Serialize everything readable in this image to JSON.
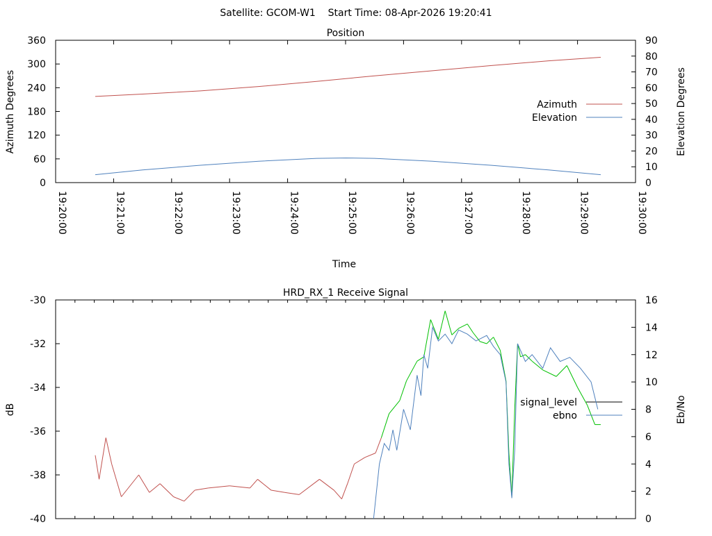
{
  "chart_data": [
    {
      "type": "line",
      "suptitle": "Satellite: GCOM-W1    Start Time: 08-Apr-2026 19:20:41",
      "title": "Position",
      "xlabel": "Time",
      "ylabel": "Azimuth Degrees",
      "y2label": "Elevation Degrees",
      "xlim_s": [
        0,
        600
      ],
      "ylim": [
        0,
        360
      ],
      "y2lim": [
        0,
        90
      ],
      "xticks": [
        "19:20:00",
        "19:21:00",
        "19:22:00",
        "19:23:00",
        "19:24:00",
        "19:25:00",
        "19:26:00",
        "19:27:00",
        "19:28:00",
        "19:29:00",
        "19:30:00"
      ],
      "yticks": [
        "0",
        "60",
        "120",
        "180",
        "240",
        "300",
        "360"
      ],
      "y2ticks": [
        "0",
        "10",
        "20",
        "30",
        "40",
        "50",
        "60",
        "70",
        "80",
        "90"
      ],
      "legend": "right",
      "series": [
        {
          "name": "Azimuth",
          "color": "#c0504d",
          "axis": "y",
          "x_s": [
            41,
            90,
            150,
            210,
            270,
            330,
            390,
            450,
            510,
            564
          ],
          "values": [
            218,
            224,
            232,
            243,
            256,
            270,
            283,
            296,
            308,
            317
          ]
        },
        {
          "name": "Elevation",
          "color": "#4f81bd",
          "axis": "y2",
          "x_s": [
            41,
            90,
            150,
            210,
            270,
            300,
            330,
            390,
            450,
            510,
            564
          ],
          "values": [
            5,
            8,
            11,
            13.5,
            15.3,
            15.6,
            15.3,
            13.5,
            11,
            8,
            5
          ]
        }
      ]
    },
    {
      "type": "line",
      "title": "HRD_RX_1 Receive Signal",
      "ylabel": "dB",
      "y2label": "Eb/No",
      "xlim_s": [
        0,
        600
      ],
      "ylim": [
        -40,
        -30
      ],
      "y2lim": [
        0,
        16
      ],
      "yticks": [
        "-40",
        "-38",
        "-36",
        "-34",
        "-32",
        "-30"
      ],
      "y2ticks": [
        "0",
        "2",
        "4",
        "6",
        "8",
        "10",
        "12",
        "14",
        "16"
      ],
      "legend": "right",
      "series": [
        {
          "name": "signal_level",
          "legend_color": "#000000",
          "low_color": "#c0504d",
          "high_color": "#00c000",
          "high_from_s": 335,
          "axis": "y",
          "x_s": [
            41,
            45,
            52,
            58,
            68,
            86,
            97,
            108,
            122,
            133,
            144,
            158,
            180,
            201,
            209,
            223,
            237,
            252,
            273,
            288,
            296,
            302,
            309,
            320,
            331,
            337,
            345,
            356,
            363,
            374,
            381,
            388,
            396,
            403,
            410,
            417,
            426,
            432,
            439,
            446,
            453,
            460,
            466,
            469,
            472,
            475,
            478,
            481,
            486,
            493,
            504,
            518,
            529,
            540,
            550,
            558,
            564
          ],
          "values": [
            -37.1,
            -38.2,
            -36.3,
            -37.5,
            -39.0,
            -38.0,
            -38.8,
            -38.4,
            -39.0,
            -39.2,
            -38.7,
            -38.6,
            -38.5,
            -38.6,
            -38.2,
            -38.7,
            -38.8,
            -38.9,
            -38.2,
            -38.7,
            -39.1,
            -38.4,
            -37.5,
            -37.2,
            -37.0,
            -36.3,
            -35.2,
            -34.6,
            -33.7,
            -32.8,
            -32.6,
            -30.9,
            -31.8,
            -30.5,
            -31.6,
            -31.3,
            -31.1,
            -31.5,
            -31.9,
            -32.0,
            -31.7,
            -32.3,
            -33.7,
            -37.0,
            -39.0,
            -35.0,
            -32.0,
            -32.6,
            -32.5,
            -32.8,
            -33.2,
            -33.5,
            -33.0,
            -34.0,
            -34.8,
            -35.7,
            -35.7
          ]
        },
        {
          "name": "ebno",
          "color": "#4f81bd",
          "axis": "y2",
          "x_s": [
            329,
            335,
            340,
            345,
            349,
            353,
            360,
            367,
            374,
            378,
            381,
            385,
            390,
            396,
            403,
            410,
            417,
            426,
            435,
            446,
            453,
            460,
            466,
            469,
            472,
            475,
            478,
            486,
            493,
            504,
            512,
            522,
            532,
            543,
            554,
            561
          ],
          "values": [
            0,
            4,
            5.5,
            5,
            6.5,
            5,
            8,
            6.5,
            10.5,
            9,
            12,
            11,
            14,
            13,
            13.5,
            12.8,
            13.8,
            13.5,
            13.0,
            13.4,
            12.6,
            12,
            10,
            4,
            1.5,
            5,
            12.8,
            11.5,
            12,
            11,
            12.5,
            11.5,
            11.8,
            11,
            10,
            8
          ]
        }
      ]
    }
  ]
}
